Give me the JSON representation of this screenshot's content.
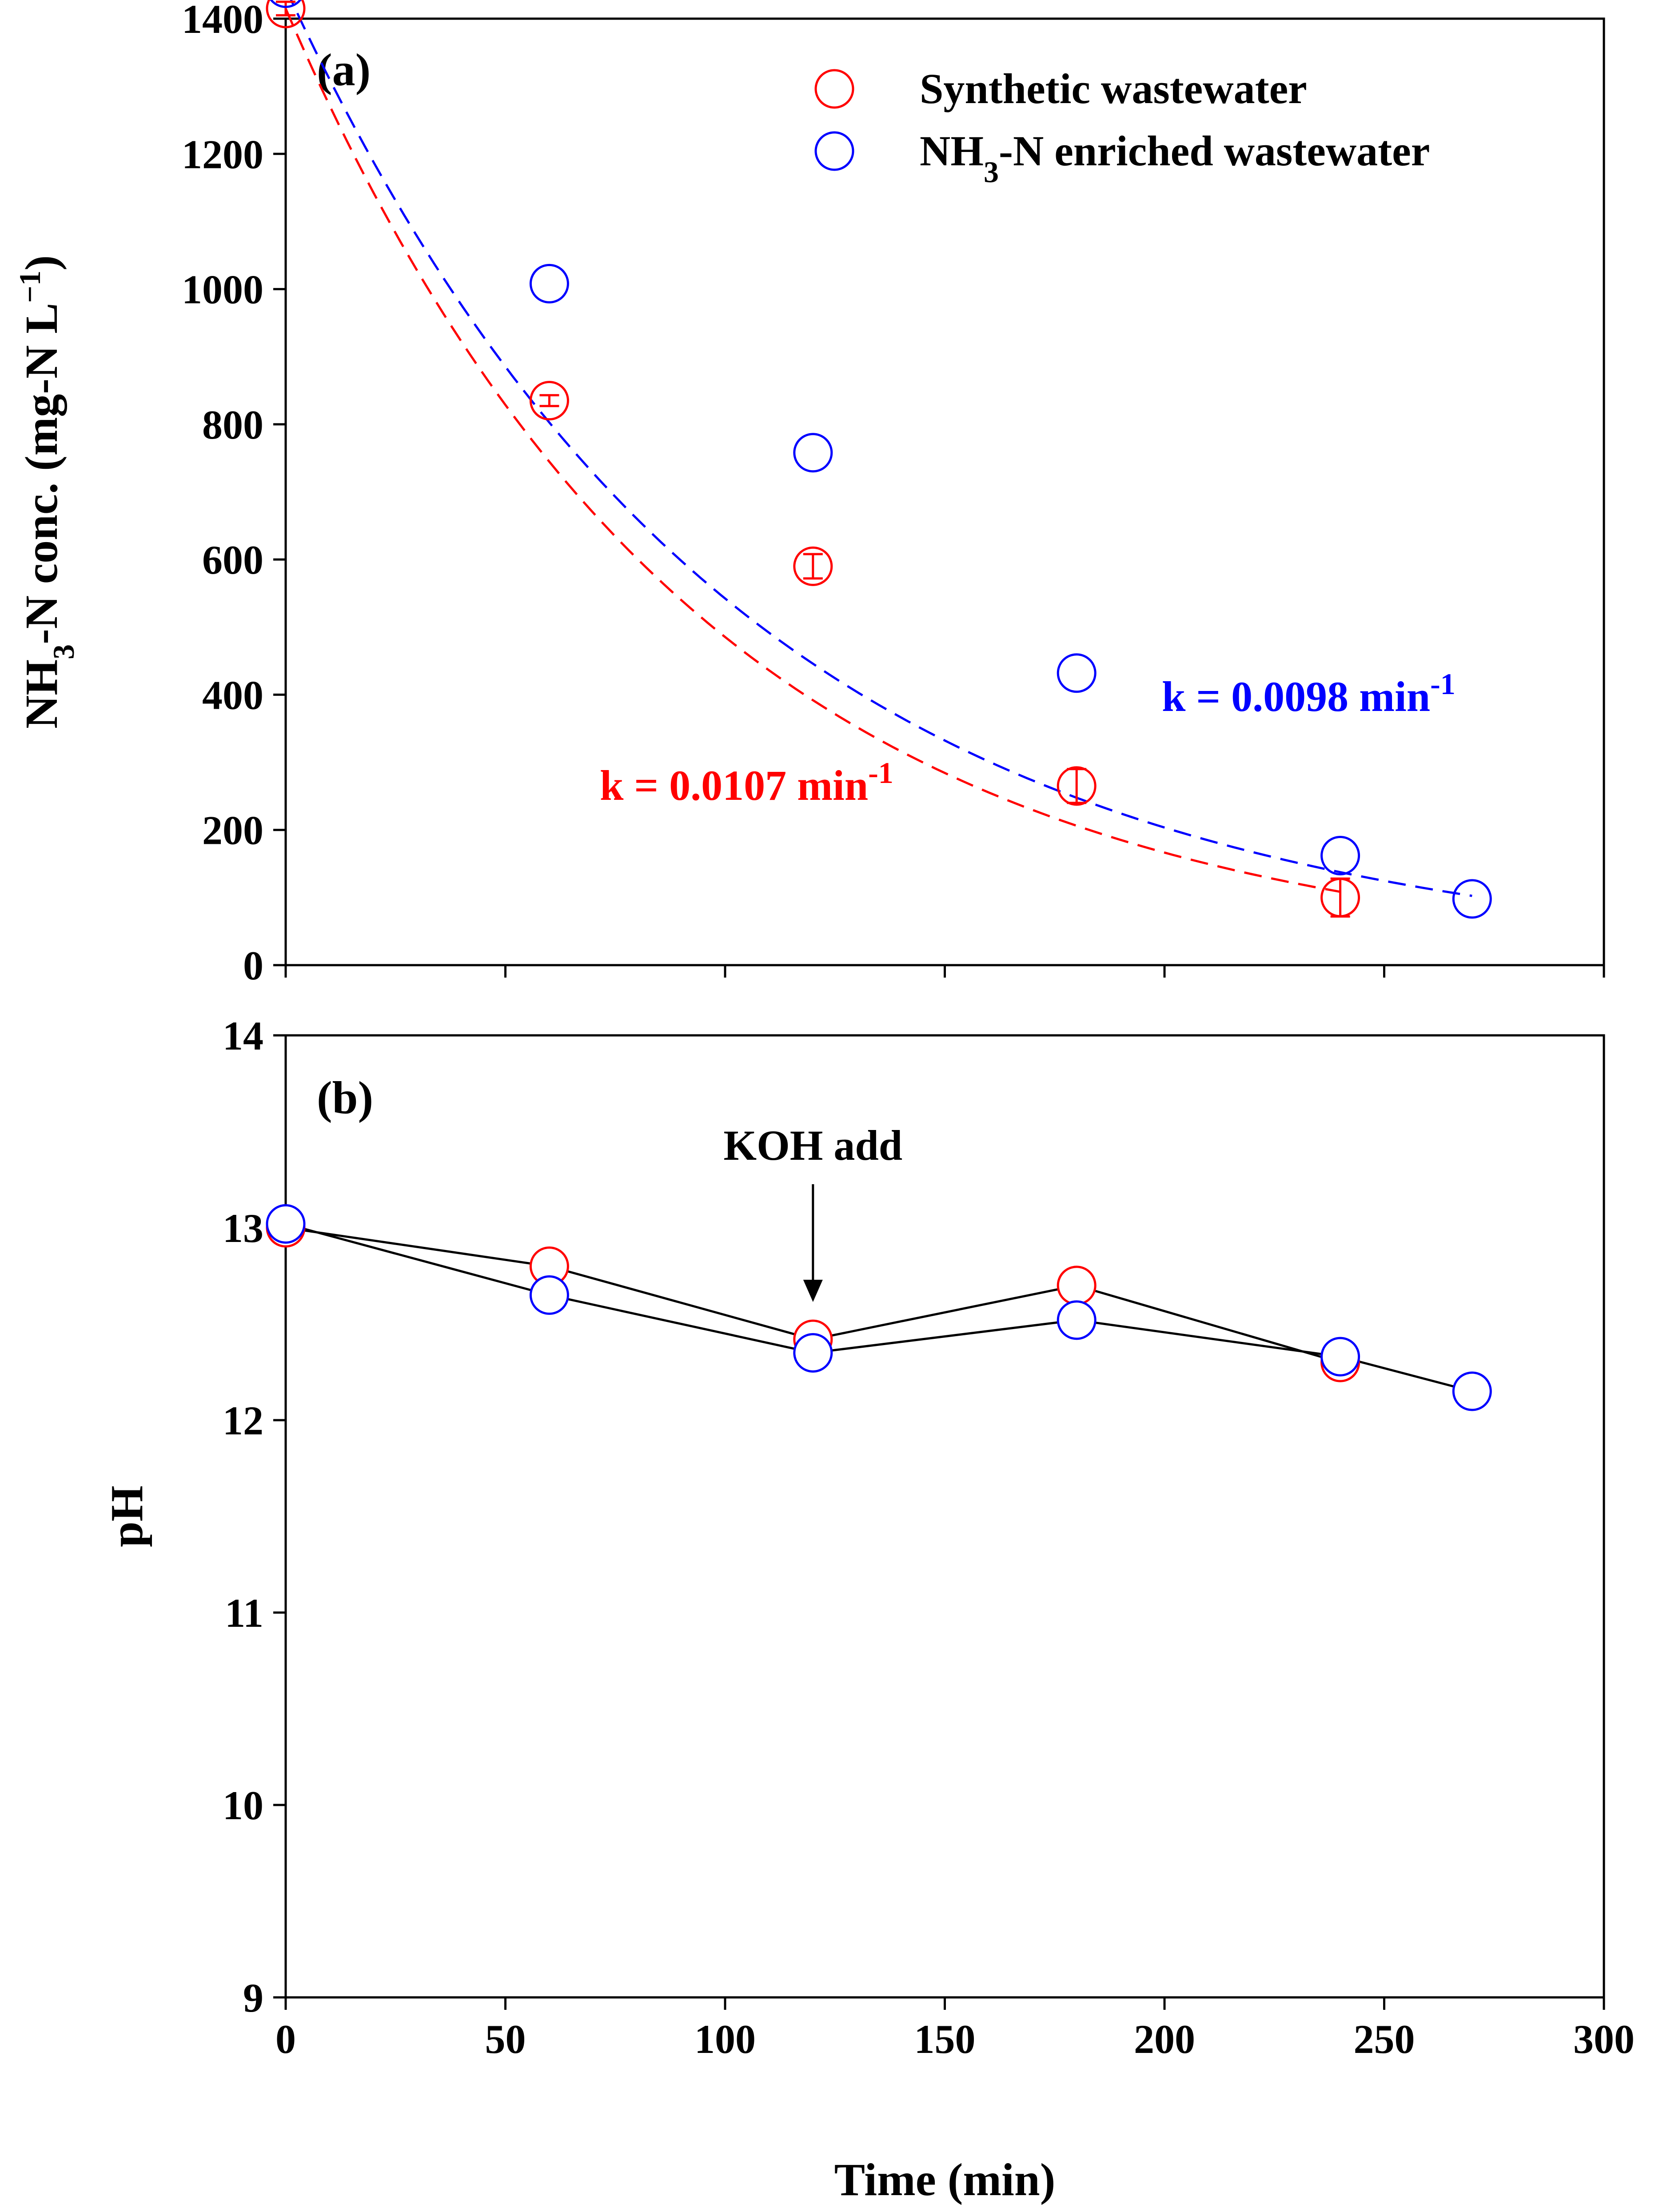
{
  "chart_data": [
    {
      "type": "scatter",
      "panel_label": "(a)",
      "ylabel_parts": [
        "NH",
        "3",
        "-N conc. (mg-N L",
        "−1",
        ")"
      ],
      "xlim": [
        0,
        300
      ],
      "ylim": [
        0,
        1400
      ],
      "yticks": [
        0,
        200,
        400,
        600,
        800,
        1000,
        1200,
        1400
      ],
      "xticks": [
        0,
        50,
        100,
        150,
        200,
        250,
        300
      ],
      "legend": {
        "position": "top-right",
        "entries": [
          {
            "label_parts": [
              "Synthetic wastewater"
            ],
            "color": "#ff0000"
          },
          {
            "label_parts": [
              "NH",
              "3",
              "-N enriched wastewater"
            ],
            "color": "#0000ff"
          }
        ]
      },
      "series": [
        {
          "name": "Synthetic wastewater",
          "color": "#ff0000",
          "x": [
            0,
            60,
            120,
            180,
            240
          ],
          "y": [
            1415,
            835,
            590,
            265,
            100
          ],
          "yerr": [
            10,
            8,
            18,
            25,
            28
          ],
          "fit": {
            "model": "exponential decay",
            "c0": 1415,
            "k": 0.0107,
            "x_range": [
              0,
              240
            ]
          },
          "k_label": {
            "text": "k = 0.0107 min",
            "sup": "-1"
          }
        },
        {
          "name": "NH3-N enriched wastewater",
          "color": "#0000ff",
          "x": [
            0,
            60,
            120,
            180,
            240,
            270
          ],
          "y": [
            1445,
            1008,
            758,
            432,
            162,
            98
          ],
          "fit": {
            "model": "exponential decay",
            "c0": 1445,
            "k": 0.0098,
            "x_range": [
              0,
              270
            ]
          },
          "k_label": {
            "text": "k = 0.0098 min",
            "sup": "-1"
          }
        }
      ]
    },
    {
      "type": "line",
      "panel_label": "(b)",
      "ylabel": "pH",
      "xlabel": "Time (min)",
      "xlim": [
        0,
        300
      ],
      "ylim": [
        9,
        14
      ],
      "yticks": [
        9,
        10,
        11,
        12,
        13,
        14
      ],
      "xticks": [
        0,
        50,
        100,
        150,
        200,
        250,
        300
      ],
      "annotation": {
        "text": "KOH add",
        "x": 120
      },
      "series": [
        {
          "name": "Synthetic wastewater",
          "color": "#ff0000",
          "x": [
            0,
            60,
            120,
            180,
            240
          ],
          "y": [
            13.0,
            12.8,
            12.42,
            12.7,
            12.3
          ]
        },
        {
          "name": "NH3-N enriched wastewater",
          "color": "#0000ff",
          "x": [
            0,
            60,
            120,
            180,
            240,
            270
          ],
          "y": [
            13.02,
            12.65,
            12.35,
            12.52,
            12.33,
            12.15
          ]
        }
      ]
    }
  ]
}
